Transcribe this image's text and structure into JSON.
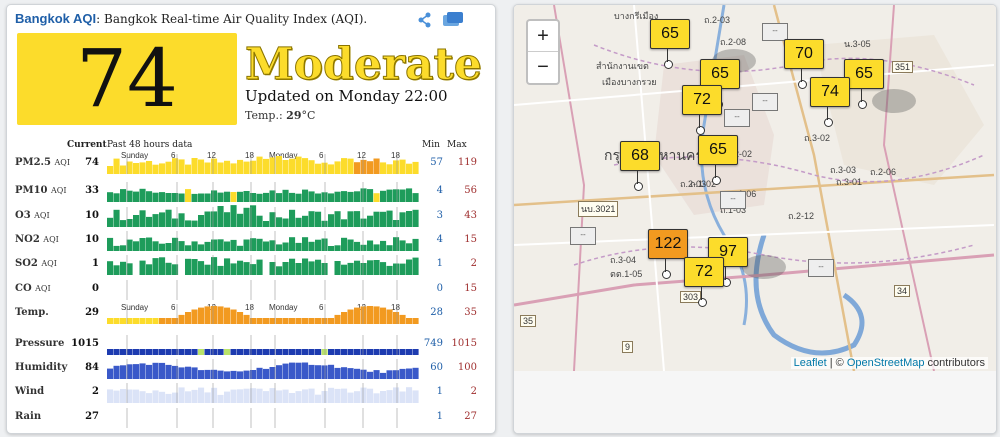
{
  "header": {
    "site": "Bangkok AQI",
    "subtitle": ": Bangkok Real-time Air Quality Index (AQI)."
  },
  "aqi": {
    "value": "74",
    "level": "Moderate",
    "updated": "Updated on Monday 22:00",
    "temp_label": "Temp.: ",
    "temp_value": "29",
    "temp_unit": "°C"
  },
  "table": {
    "current_label": "Current",
    "history_label": "Past 48 hours data",
    "min_label": "Min",
    "max_label": "Max",
    "ticks": [
      "Sunday",
      "6",
      "12",
      "18",
      "Monday",
      "6",
      "12",
      "18"
    ],
    "rows": [
      {
        "label": "PM2.5",
        "unit": "AQI",
        "value": "74",
        "min": "57",
        "max": "119"
      },
      {
        "label": "PM10",
        "unit": "AQI",
        "value": "33",
        "min": "4",
        "max": "56"
      },
      {
        "label": "O3",
        "unit": "AQI",
        "value": "10",
        "min": "3",
        "max": "43"
      },
      {
        "label": "NO2",
        "unit": "AQI",
        "value": "10",
        "min": "4",
        "max": "15"
      },
      {
        "label": "SO2",
        "unit": "AQI",
        "value": "1",
        "min": "1",
        "max": "2"
      },
      {
        "label": "CO",
        "unit": "AQI",
        "value": "0",
        "min": "0",
        "max": "15"
      },
      {
        "label": "Temp.",
        "unit": "",
        "value": "29",
        "min": "28",
        "max": "35"
      },
      {
        "label": "Pressure",
        "unit": "",
        "value": "1015",
        "min": "749",
        "max": "1015"
      },
      {
        "label": "Humidity",
        "unit": "",
        "value": "84",
        "min": "60",
        "max": "100"
      },
      {
        "label": "Wind",
        "unit": "",
        "value": "2",
        "min": "1",
        "max": "2"
      },
      {
        "label": "Rain",
        "unit": "",
        "value": "27",
        "min": "1",
        "max": "27"
      }
    ]
  },
  "map": {
    "zoom_in": "+",
    "zoom_out": "−",
    "markers": [
      "65",
      "65",
      "70",
      "65",
      "72",
      "74",
      "68",
      "65",
      "122",
      "97",
      "72"
    ],
    "no_data": "--",
    "attribution_link1": "Leaflet",
    "attribution_sep": " | © ",
    "attribution_link2": "OpenStreetMap",
    "attribution_rest": " contributors",
    "labels": [
      "บางกรีเมือง",
      "ถ.2-03",
      "ถ.2-08",
      "น.3-05",
      "สำนักงานเขต",
      "เมืองบางกรวย",
      "กรุงเทพมหานคร",
      "ถ.3-02",
      "ถ.3-03",
      "ถ.3-01",
      "ถ.2-06",
      "ถ.2-02",
      "ถ.2-03",
      "ถ.1-02",
      "ถ.1-03",
      "ถ.2-12",
      "ถ.3-04",
      "ตต.1-05",
      "ตต.1-06"
    ],
    "shields": [
      "351",
      "นบ.3021",
      "303",
      "34",
      "35",
      "9"
    ]
  },
  "colors": {
    "good": "#1e9c5b",
    "moderate": "#fcdc2b",
    "usg": "#f29a20",
    "blue": "#1f5fa8"
  }
}
